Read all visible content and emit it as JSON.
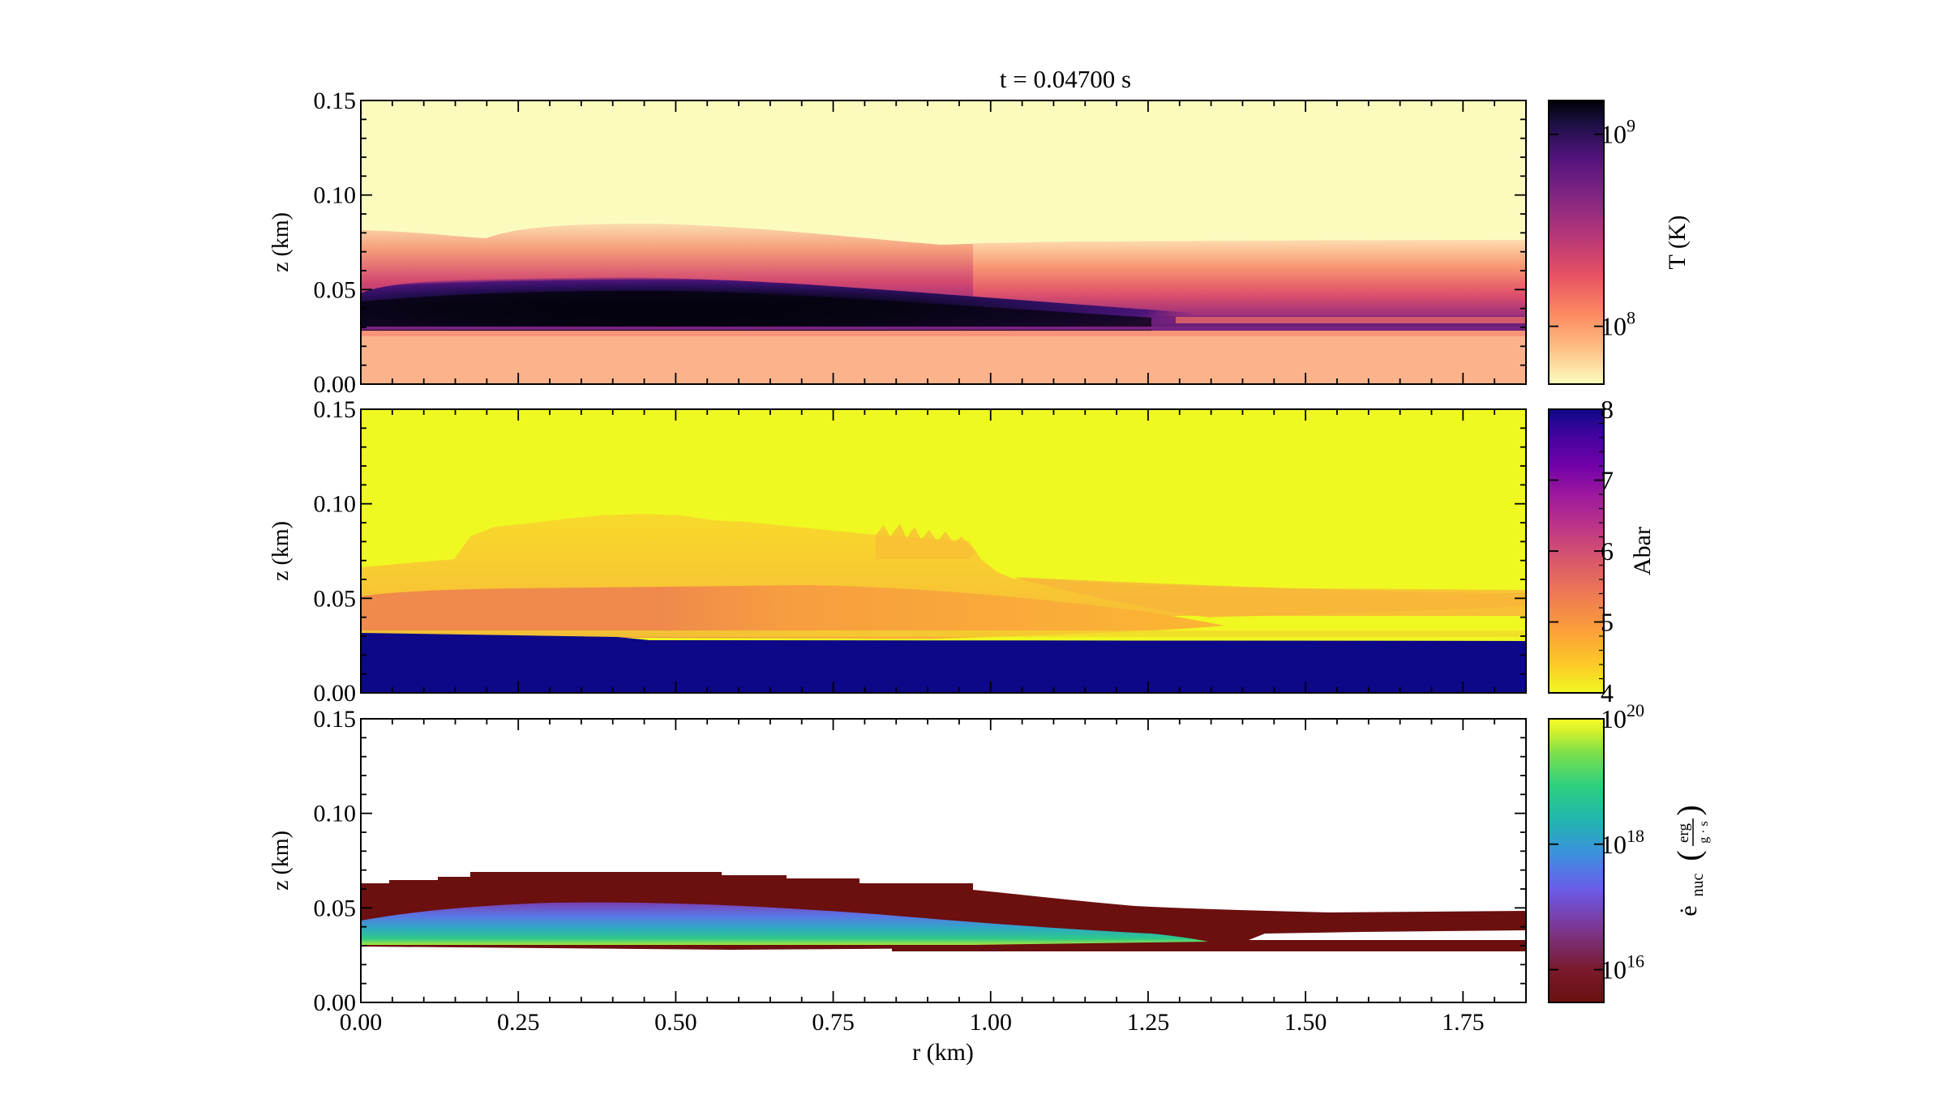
{
  "figure": {
    "title": "t =  0.04700 s"
  },
  "colors": {
    "magma": [
      "#fcfdbf",
      "#fec287",
      "#fc8961",
      "#e75263",
      "#b73779",
      "#822681",
      "#51127c",
      "#1c1044",
      "#000004"
    ],
    "plasma": [
      "#0d0887",
      "#46039f",
      "#7201a8",
      "#9c179e",
      "#bd3786",
      "#d8576b",
      "#ed7953",
      "#fb9f3a",
      "#fdca26",
      "#f0f921"
    ],
    "viridis_dark_start": [
      "#6b0f0f",
      "#7a1a2e",
      "#7b3aa0",
      "#6a5ce8",
      "#3d8fe0",
      "#21b5b0",
      "#2ccf80",
      "#7be04a",
      "#d8f22a",
      "#f4fb2a"
    ]
  },
  "chart_data": [
    {
      "type": "heatmap",
      "field": "temperature",
      "title": "t =  0.04700 s",
      "xlabel": "",
      "ylabel": "z  (km)",
      "xlim": [
        0.0,
        1.85
      ],
      "ylim": [
        0.0,
        0.15
      ],
      "y_ticks": [
        "0.00",
        "0.05",
        "0.10",
        "0.15"
      ],
      "colorbar": {
        "label": "T  (K)",
        "scale": "log",
        "range": [
          50000000,
          1500000000
        ],
        "ticks": [
          "10⁸",
          "10⁹"
        ],
        "colormap": "magma"
      },
      "features": {
        "hot_layer_peak_K": 1400000000,
        "hot_layer_extent_r_km": [
          0.0,
          1.3
        ],
        "hot_layer_z_km": [
          0.03,
          0.05
        ],
        "envelope_top_z_km": 0.08,
        "base_layer_T_K": 90000000
      }
    },
    {
      "type": "heatmap",
      "field": "Abar",
      "xlabel": "",
      "ylabel": "z  (km)",
      "xlim": [
        0.0,
        1.85
      ],
      "ylim": [
        0.0,
        0.15
      ],
      "y_ticks": [
        "0.00",
        "0.05",
        "0.10",
        "0.15"
      ],
      "colorbar": {
        "label": "Abar",
        "scale": "linear",
        "range": [
          4,
          8
        ],
        "ticks": [
          "4",
          "5",
          "6",
          "7",
          "8"
        ],
        "colormap": "plasma"
      },
      "features": {
        "substrate_Abar": 8,
        "substrate_top_z_km": 0.03,
        "ambient_Abar": 4,
        "burned_region_Abar": 5,
        "burned_region_extent_r_km": [
          0.0,
          1.0
        ],
        "burned_region_top_z_km": 0.09
      }
    },
    {
      "type": "heatmap",
      "field": "enuc",
      "xlabel": "r  (km)",
      "ylabel": "z  (km)",
      "xlim": [
        0.0,
        1.85
      ],
      "ylim": [
        0.0,
        0.15
      ],
      "x_ticks": [
        "0.00",
        "0.25",
        "0.50",
        "0.75",
        "1.00",
        "1.25",
        "1.50",
        "1.75"
      ],
      "y_ticks": [
        "0.00",
        "0.05",
        "0.10",
        "0.15"
      ],
      "colorbar": {
        "label_main": "ė",
        "label_sub": "nuc",
        "label_num": "erg",
        "label_den": "g · s",
        "scale": "log",
        "range": [
          3000000000000000.0,
          1e+20
        ],
        "ticks": [
          "10¹⁶",
          "10¹⁸",
          "10²⁰"
        ],
        "colormap": "viridis_dark_start"
      },
      "features": {
        "burning_front_extent_r_km": [
          0.0,
          1.35
        ],
        "burning_front_z_km": [
          0.03,
          0.05
        ],
        "peak_enuc": 1e+19,
        "low_burning_region_top_z_km": 0.065,
        "thin_layer_z_km": 0.03
      }
    }
  ]
}
